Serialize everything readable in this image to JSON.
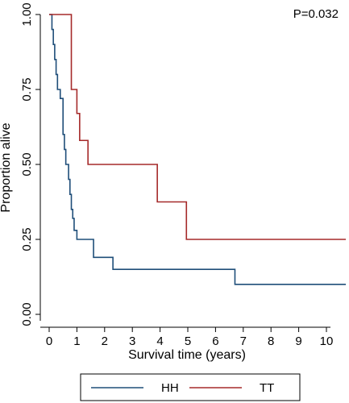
{
  "chart_data": {
    "type": "line",
    "subtype": "kaplan-meier",
    "xlabel": "Survival time (years)",
    "ylabel": "Proportion alive",
    "xlim": [
      0,
      10.7
    ],
    "ylim": [
      0,
      1
    ],
    "xticks": [
      0,
      1,
      2,
      3,
      4,
      5,
      6,
      7,
      8,
      9,
      10
    ],
    "yticks": [
      0,
      0.25,
      0.5,
      0.75,
      1
    ],
    "ytick_labels": [
      "0.00",
      "0.25",
      "0.50",
      "0.75",
      "1.00"
    ],
    "grid": false,
    "annotation": "P=0.032",
    "legend": {
      "placement": "bottom"
    },
    "series": [
      {
        "name": "HH",
        "color": "#1f4e79",
        "points": [
          [
            0,
            1.0
          ],
          [
            0.1,
            0.95
          ],
          [
            0.15,
            0.9
          ],
          [
            0.2,
            0.85
          ],
          [
            0.25,
            0.8
          ],
          [
            0.3,
            0.75
          ],
          [
            0.4,
            0.72
          ],
          [
            0.5,
            0.6
          ],
          [
            0.55,
            0.55
          ],
          [
            0.6,
            0.5
          ],
          [
            0.7,
            0.45
          ],
          [
            0.75,
            0.4
          ],
          [
            0.8,
            0.35
          ],
          [
            0.85,
            0.32
          ],
          [
            0.9,
            0.28
          ],
          [
            1.0,
            0.25
          ],
          [
            1.6,
            0.19
          ],
          [
            2.3,
            0.15
          ],
          [
            6.7,
            0.1
          ],
          [
            10.7,
            0.1
          ]
        ]
      },
      {
        "name": "TT",
        "color": "#a52a2a",
        "points": [
          [
            0,
            1.0
          ],
          [
            0.8,
            0.75
          ],
          [
            1.0,
            0.67
          ],
          [
            1.1,
            0.58
          ],
          [
            1.4,
            0.5
          ],
          [
            3.9,
            0.375
          ],
          [
            4.95,
            0.25
          ],
          [
            10.7,
            0.25
          ]
        ]
      }
    ]
  }
}
